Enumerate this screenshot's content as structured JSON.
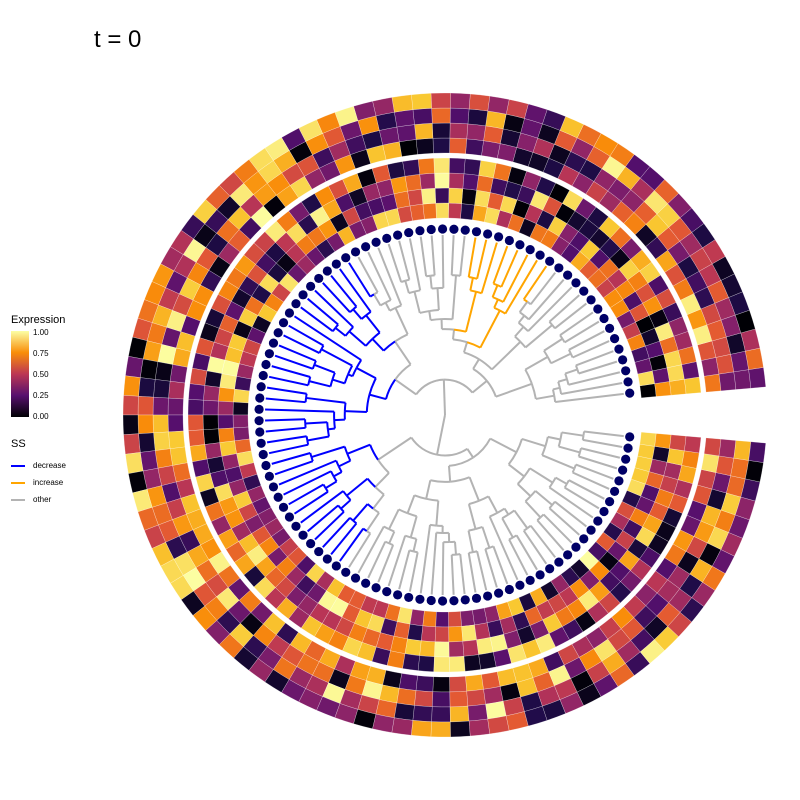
{
  "chart_data": {
    "type": "circular-tree-heatmap",
    "title": "t = 0",
    "legend": [
      {
        "title": "Expression",
        "kind": "continuous",
        "ticks": [
          "0.00",
          "0.25",
          "0.50",
          "0.75",
          "1.00"
        ],
        "range": [
          0,
          1
        ],
        "palette": "inferno"
      },
      {
        "title": "SS",
        "kind": "categorical",
        "entries": [
          {
            "label": "decrease",
            "color": "#0000ff"
          },
          {
            "label": "increase",
            "color": "#ffa500"
          },
          {
            "label": "other",
            "color": "#b3b3b3"
          }
        ]
      }
    ],
    "tips": 100,
    "heatmap_rings": 2,
    "columns_per_ring": 4,
    "tip_color": "#000066",
    "decrease_clade": [
      33,
      66
    ],
    "increase_clade": [
      14,
      22
    ],
    "gap_angle_deg": 10
  }
}
